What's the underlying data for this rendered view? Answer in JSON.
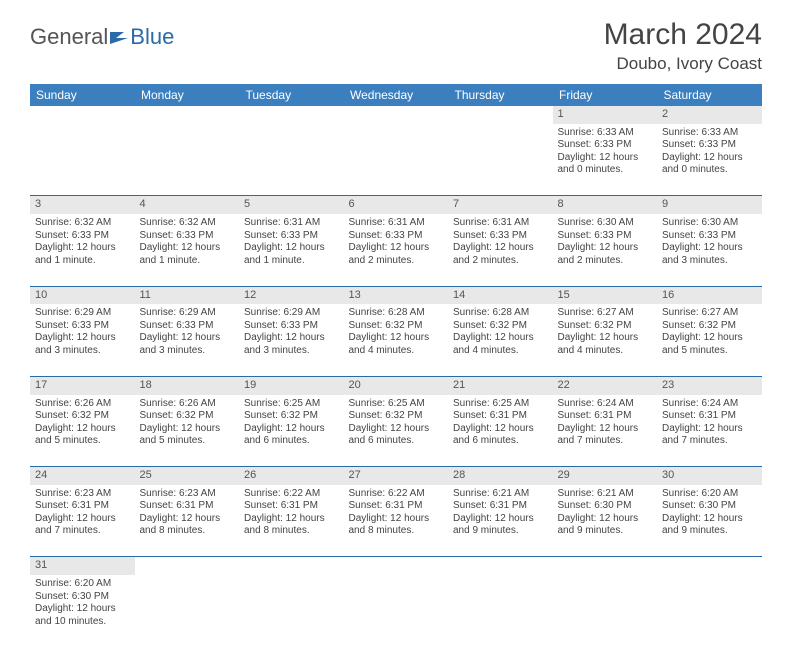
{
  "logo": {
    "part1": "General",
    "part2": "Blue"
  },
  "title": "March 2024",
  "location": "Doubo, Ivory Coast",
  "colors": {
    "header_bg": "#3b7fbf",
    "header_text": "#ffffff",
    "daynum_bg": "#e8e8e8",
    "rule": "#2b6aa8",
    "logo_blue": "#2b6aa8",
    "text": "#444444"
  },
  "dayHeaders": [
    "Sunday",
    "Monday",
    "Tuesday",
    "Wednesday",
    "Thursday",
    "Friday",
    "Saturday"
  ],
  "weeks": [
    [
      null,
      null,
      null,
      null,
      null,
      {
        "n": "1",
        "sr": "Sunrise: 6:33 AM",
        "ss": "Sunset: 6:33 PM",
        "dl": "Daylight: 12 hours and 0 minutes."
      },
      {
        "n": "2",
        "sr": "Sunrise: 6:33 AM",
        "ss": "Sunset: 6:33 PM",
        "dl": "Daylight: 12 hours and 0 minutes."
      }
    ],
    [
      {
        "n": "3",
        "sr": "Sunrise: 6:32 AM",
        "ss": "Sunset: 6:33 PM",
        "dl": "Daylight: 12 hours and 1 minute."
      },
      {
        "n": "4",
        "sr": "Sunrise: 6:32 AM",
        "ss": "Sunset: 6:33 PM",
        "dl": "Daylight: 12 hours and 1 minute."
      },
      {
        "n": "5",
        "sr": "Sunrise: 6:31 AM",
        "ss": "Sunset: 6:33 PM",
        "dl": "Daylight: 12 hours and 1 minute."
      },
      {
        "n": "6",
        "sr": "Sunrise: 6:31 AM",
        "ss": "Sunset: 6:33 PM",
        "dl": "Daylight: 12 hours and 2 minutes."
      },
      {
        "n": "7",
        "sr": "Sunrise: 6:31 AM",
        "ss": "Sunset: 6:33 PM",
        "dl": "Daylight: 12 hours and 2 minutes."
      },
      {
        "n": "8",
        "sr": "Sunrise: 6:30 AM",
        "ss": "Sunset: 6:33 PM",
        "dl": "Daylight: 12 hours and 2 minutes."
      },
      {
        "n": "9",
        "sr": "Sunrise: 6:30 AM",
        "ss": "Sunset: 6:33 PM",
        "dl": "Daylight: 12 hours and 3 minutes."
      }
    ],
    [
      {
        "n": "10",
        "sr": "Sunrise: 6:29 AM",
        "ss": "Sunset: 6:33 PM",
        "dl": "Daylight: 12 hours and 3 minutes."
      },
      {
        "n": "11",
        "sr": "Sunrise: 6:29 AM",
        "ss": "Sunset: 6:33 PM",
        "dl": "Daylight: 12 hours and 3 minutes."
      },
      {
        "n": "12",
        "sr": "Sunrise: 6:29 AM",
        "ss": "Sunset: 6:33 PM",
        "dl": "Daylight: 12 hours and 3 minutes."
      },
      {
        "n": "13",
        "sr": "Sunrise: 6:28 AM",
        "ss": "Sunset: 6:32 PM",
        "dl": "Daylight: 12 hours and 4 minutes."
      },
      {
        "n": "14",
        "sr": "Sunrise: 6:28 AM",
        "ss": "Sunset: 6:32 PM",
        "dl": "Daylight: 12 hours and 4 minutes."
      },
      {
        "n": "15",
        "sr": "Sunrise: 6:27 AM",
        "ss": "Sunset: 6:32 PM",
        "dl": "Daylight: 12 hours and 4 minutes."
      },
      {
        "n": "16",
        "sr": "Sunrise: 6:27 AM",
        "ss": "Sunset: 6:32 PM",
        "dl": "Daylight: 12 hours and 5 minutes."
      }
    ],
    [
      {
        "n": "17",
        "sr": "Sunrise: 6:26 AM",
        "ss": "Sunset: 6:32 PM",
        "dl": "Daylight: 12 hours and 5 minutes."
      },
      {
        "n": "18",
        "sr": "Sunrise: 6:26 AM",
        "ss": "Sunset: 6:32 PM",
        "dl": "Daylight: 12 hours and 5 minutes."
      },
      {
        "n": "19",
        "sr": "Sunrise: 6:25 AM",
        "ss": "Sunset: 6:32 PM",
        "dl": "Daylight: 12 hours and 6 minutes."
      },
      {
        "n": "20",
        "sr": "Sunrise: 6:25 AM",
        "ss": "Sunset: 6:32 PM",
        "dl": "Daylight: 12 hours and 6 minutes."
      },
      {
        "n": "21",
        "sr": "Sunrise: 6:25 AM",
        "ss": "Sunset: 6:31 PM",
        "dl": "Daylight: 12 hours and 6 minutes."
      },
      {
        "n": "22",
        "sr": "Sunrise: 6:24 AM",
        "ss": "Sunset: 6:31 PM",
        "dl": "Daylight: 12 hours and 7 minutes."
      },
      {
        "n": "23",
        "sr": "Sunrise: 6:24 AM",
        "ss": "Sunset: 6:31 PM",
        "dl": "Daylight: 12 hours and 7 minutes."
      }
    ],
    [
      {
        "n": "24",
        "sr": "Sunrise: 6:23 AM",
        "ss": "Sunset: 6:31 PM",
        "dl": "Daylight: 12 hours and 7 minutes."
      },
      {
        "n": "25",
        "sr": "Sunrise: 6:23 AM",
        "ss": "Sunset: 6:31 PM",
        "dl": "Daylight: 12 hours and 8 minutes."
      },
      {
        "n": "26",
        "sr": "Sunrise: 6:22 AM",
        "ss": "Sunset: 6:31 PM",
        "dl": "Daylight: 12 hours and 8 minutes."
      },
      {
        "n": "27",
        "sr": "Sunrise: 6:22 AM",
        "ss": "Sunset: 6:31 PM",
        "dl": "Daylight: 12 hours and 8 minutes."
      },
      {
        "n": "28",
        "sr": "Sunrise: 6:21 AM",
        "ss": "Sunset: 6:31 PM",
        "dl": "Daylight: 12 hours and 9 minutes."
      },
      {
        "n": "29",
        "sr": "Sunrise: 6:21 AM",
        "ss": "Sunset: 6:30 PM",
        "dl": "Daylight: 12 hours and 9 minutes."
      },
      {
        "n": "30",
        "sr": "Sunrise: 6:20 AM",
        "ss": "Sunset: 6:30 PM",
        "dl": "Daylight: 12 hours and 9 minutes."
      }
    ],
    [
      {
        "n": "31",
        "sr": "Sunrise: 6:20 AM",
        "ss": "Sunset: 6:30 PM",
        "dl": "Daylight: 12 hours and 10 minutes."
      },
      null,
      null,
      null,
      null,
      null,
      null
    ]
  ]
}
